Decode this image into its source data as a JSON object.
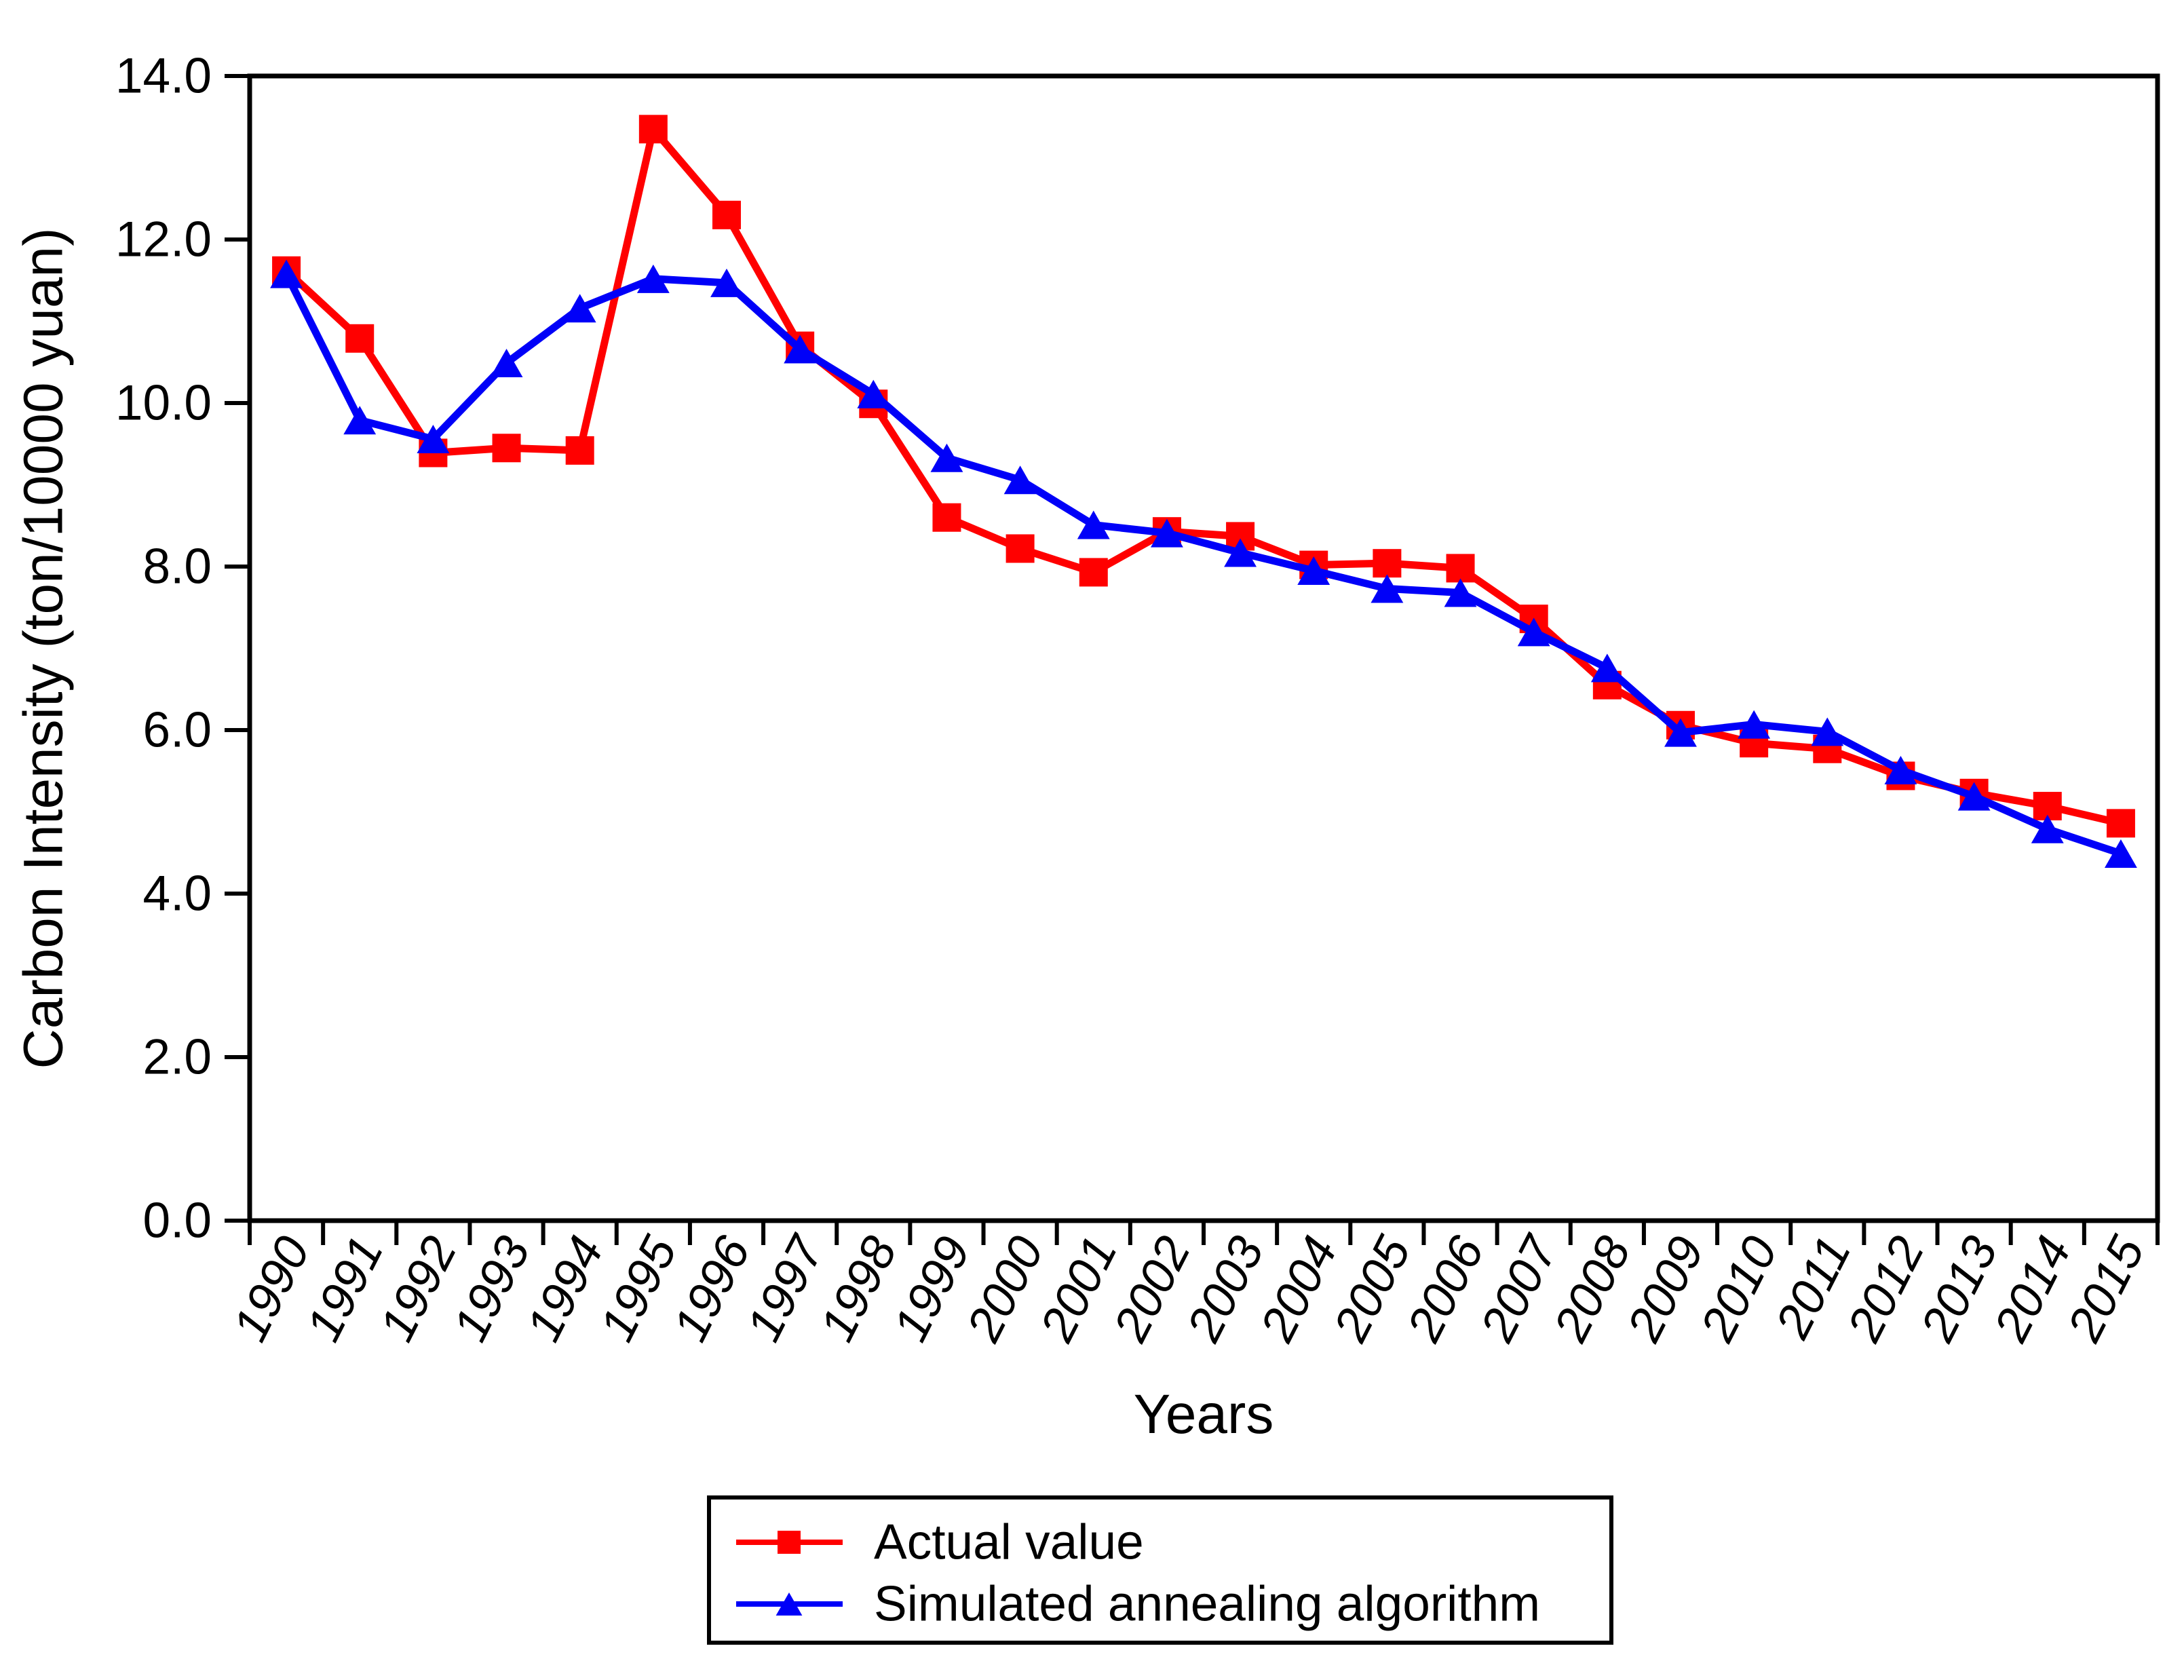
{
  "figure": {
    "background": "#ffffff",
    "axis_color": "#000000",
    "text_color": "#000000"
  },
  "chart_data": {
    "type": "line",
    "title": "",
    "xlabel": "Years",
    "ylabel": "Carbon Intensity (ton/10000 yuan)",
    "x_categories": [
      "1990",
      "1991",
      "1992",
      "1993",
      "1994",
      "1995",
      "1996",
      "1997",
      "1998",
      "1999",
      "2000",
      "2001",
      "2002",
      "2003",
      "2004",
      "2005",
      "2006",
      "2007",
      "2008",
      "2009",
      "2010",
      "2011",
      "2012",
      "2013",
      "2014",
      "2015"
    ],
    "ylim": [
      0,
      14
    ],
    "ytick_step": 2,
    "ytick_labels": [
      "0.0",
      "2.0",
      "4.0",
      "6.0",
      "8.0",
      "10.0",
      "12.0",
      "14.0"
    ],
    "grid": false,
    "legend_position": "below-outside",
    "series": [
      {
        "name": "Actual value",
        "color": "#ff0000",
        "marker": "square",
        "values": [
          11.62,
          10.79,
          9.39,
          9.45,
          9.42,
          13.35,
          12.3,
          10.7,
          9.99,
          8.6,
          8.22,
          7.93,
          8.43,
          8.37,
          8.02,
          8.04,
          7.98,
          7.36,
          6.55,
          6.06,
          5.84,
          5.77,
          5.44,
          5.23,
          5.07,
          4.86
        ]
      },
      {
        "name": "Simulated annealing algorithm",
        "color": "#0000f8",
        "marker": "triangle",
        "values": [
          11.58,
          9.79,
          9.56,
          10.49,
          11.16,
          11.52,
          11.47,
          10.66,
          10.11,
          9.33,
          9.06,
          8.51,
          8.41,
          8.17,
          7.95,
          7.73,
          7.68,
          7.2,
          6.76,
          5.97,
          6.07,
          5.98,
          5.51,
          5.19,
          4.79,
          4.49
        ]
      }
    ]
  }
}
